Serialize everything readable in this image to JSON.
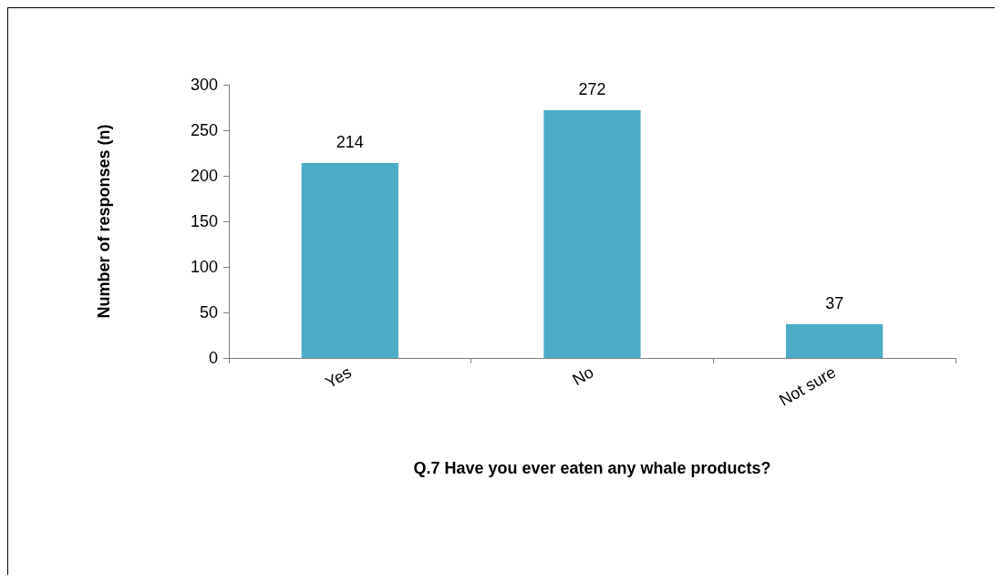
{
  "chart_data": {
    "type": "bar",
    "xlabel": "Q.7 Have you ever eaten any whale products?",
    "ylabel": "Number of responses (n)",
    "categories": [
      "Yes",
      "No",
      "Not sure"
    ],
    "values": [
      214,
      272,
      37
    ],
    "color": "#4bacc6",
    "ylim": [
      0,
      300
    ],
    "yticks": [
      0,
      50,
      100,
      150,
      200,
      250,
      300
    ],
    "grid": false,
    "data_labels": true
  }
}
